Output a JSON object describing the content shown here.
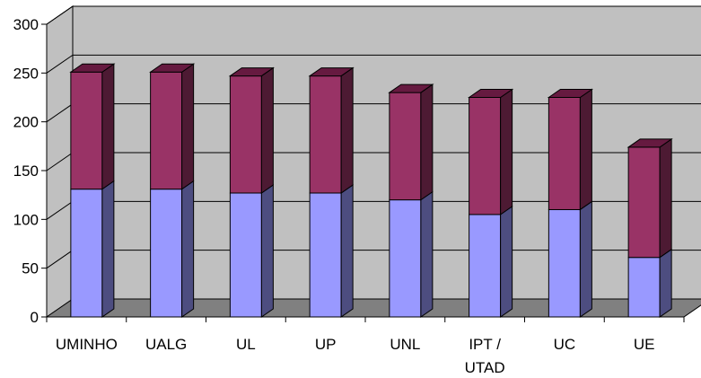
{
  "chart_data": {
    "type": "bar",
    "stacked": true,
    "three_d": true,
    "categories": [
      "UMINHO",
      "UALG",
      "UL",
      "UP",
      "UNL",
      "IPT / UTAD",
      "UC",
      "UE"
    ],
    "category_lines": [
      [
        "UMINHO"
      ],
      [
        "UALG"
      ],
      [
        "UL"
      ],
      [
        "UP"
      ],
      [
        "UNL"
      ],
      [
        "IPT /",
        "UTAD"
      ],
      [
        "UC"
      ],
      [
        "UE"
      ]
    ],
    "series": [
      {
        "values": [
          131,
          131,
          127,
          127,
          120,
          105,
          110,
          61
        ]
      },
      {
        "values": [
          120,
          120,
          120,
          120,
          110,
          120,
          115,
          113
        ]
      }
    ],
    "ylim": [
      0,
      300
    ],
    "yticks": [
      "0",
      "50",
      "100",
      "150",
      "200",
      "250",
      "300"
    ],
    "grid": true,
    "legend": "none"
  },
  "colors": {
    "series_front": [
      "#9999ff",
      "#993366"
    ],
    "series_side": [
      "#4d4d80",
      "#4d1a33"
    ],
    "series_top": [
      "#b3b3ff",
      "#661a40"
    ],
    "back_wall": "#c0c0c0",
    "floor": "#808080",
    "gridline": "#000000"
  }
}
